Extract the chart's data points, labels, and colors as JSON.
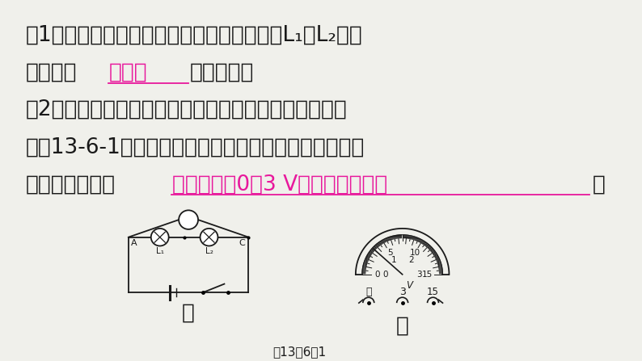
{
  "bg_color": "#f0f0eb",
  "text_color": "#1a1a1a",
  "magenta_color": "#e8189c",
  "line1": "（1）为了使探究得出的结论具有普遍意义，L₁、L₂应该",
  "line2_pre": "选择规格",
  "line2_answer": "不相同",
  "line2_post": "的小灯泡。",
  "line3": "（2）海英根据甲图连接好电路，闭合开关，电压表示数",
  "line4": "如图13-6-1乙所示，为了使实验结果更准确，接下来她",
  "line5_pre": "应该断开开关，",
  "line5_answer": "电压表选用0～3 V的量程进行实验",
  "line5_post": "。",
  "caption": "图13－6－1",
  "jia": "甲",
  "yi": "乙"
}
